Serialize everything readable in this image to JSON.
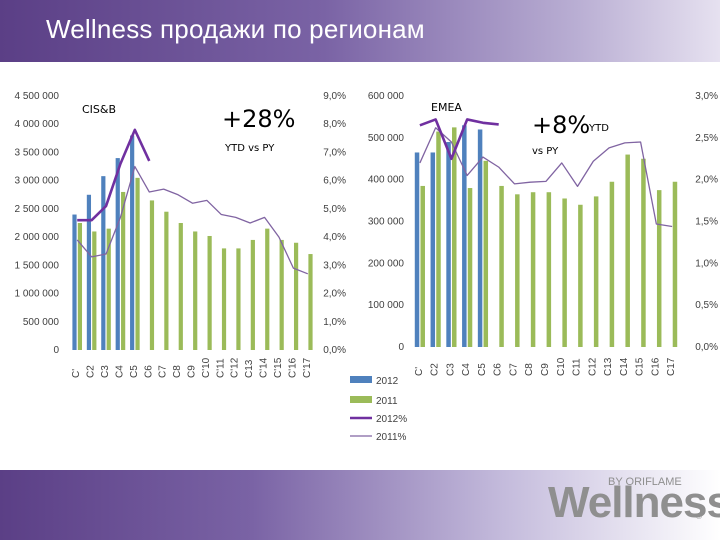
{
  "header": {
    "title": "Wellness продажи по регионам"
  },
  "logo": {
    "brand": "Wellness",
    "by": "BY ORIFLAME",
    "reg": "®"
  },
  "colors": {
    "bar2012": "#4f81bd",
    "bar2011": "#9bbb59",
    "line2012": "#7030a0",
    "line2011": "#8064a2"
  },
  "legend": [
    "2012",
    "2011",
    "2012%",
    "2011%"
  ],
  "chart_data": [
    {
      "type": "bar",
      "name_label": "CIS&B",
      "growth": "+28%",
      "growth_sub": "YTD vs PY",
      "categories": [
        "C1",
        "C2",
        "C3",
        "C4",
        "C5",
        "C6",
        "C7",
        "C8",
        "C9",
        "C10",
        "C11",
        "C12",
        "C13",
        "C14",
        "C15",
        "C16",
        "C17"
      ],
      "category_labels": [
        "C'",
        "C2",
        "C3",
        "C4",
        "C5",
        "C6",
        "C7",
        "C8",
        "C9",
        "C'10",
        "C'11",
        "C'12",
        "C13",
        "C'14",
        "C'15",
        "C'16",
        "C'17"
      ],
      "ylim": [
        0,
        4500000
      ],
      "y2lim": [
        0,
        9
      ],
      "y_ticks": [
        "0",
        "500 000",
        "1 000 000",
        "1 500 000",
        "2 000 000",
        "2 500 000",
        "3 000 000",
        "3 500 000",
        "4 000 000",
        "4 500 000"
      ],
      "y2_ticks": [
        "0,0%",
        "1,0%",
        "2,0%",
        "3,0%",
        "4,0%",
        "5,0%",
        "6,0%",
        "7,0%",
        "8,0%",
        "9,0%"
      ],
      "series": [
        {
          "name": "2012",
          "values": [
            2400000,
            2750000,
            3080000,
            3400000,
            3800000,
            null,
            null,
            null,
            null,
            null,
            null,
            null,
            null,
            null,
            null,
            null,
            null
          ]
        },
        {
          "name": "2011",
          "values": [
            2250000,
            2100000,
            2150000,
            2800000,
            3050000,
            2650000,
            2450000,
            2250000,
            2100000,
            2020000,
            1800000,
            1800000,
            1950000,
            2150000,
            1950000,
            1900000,
            1700000
          ]
        },
        {
          "name": "2012%",
          "values": [
            4.6,
            4.6,
            5.1,
            6.6,
            7.8,
            6.7,
            null,
            null,
            null,
            null,
            null,
            null,
            null,
            null,
            null,
            null,
            null
          ]
        },
        {
          "name": "2011%",
          "values": [
            3.9,
            3.3,
            3.4,
            4.7,
            6.5,
            5.6,
            5.7,
            5.5,
            5.2,
            5.3,
            4.8,
            4.7,
            4.5,
            4.7,
            4.0,
            2.9,
            2.7
          ]
        }
      ]
    },
    {
      "type": "bar",
      "name_label": "EMEA",
      "growth": "+8%",
      "growth_ytd": "YTD",
      "growth_sub": "vs PY",
      "categories": [
        "C1",
        "C2",
        "C3",
        "C4",
        "C5",
        "C6",
        "C7",
        "C8",
        "C9",
        "C10",
        "C11",
        "C12",
        "C13",
        "C14",
        "C15",
        "C16",
        "C17"
      ],
      "category_labels": [
        "C'",
        "C2",
        "C3",
        "C4",
        "C5",
        "C6",
        "C7",
        "C8",
        "C9",
        "C10",
        "C11",
        "C12",
        "C13",
        "C14",
        "C15",
        "C16",
        "C17"
      ],
      "ylim": [
        0,
        600000
      ],
      "y2lim": [
        0,
        3
      ],
      "y_ticks": [
        "0",
        "100 000",
        "200 000",
        "300 000",
        "400 000",
        "500 000",
        "600 000"
      ],
      "y2_ticks": [
        "0,0%",
        "0,5%",
        "1,0%",
        "1,5%",
        "2,0%",
        "2,5%",
        "3,0%"
      ],
      "series": [
        {
          "name": "2012",
          "values": [
            465000,
            465000,
            490000,
            530000,
            520000,
            null,
            null,
            null,
            null,
            null,
            null,
            null,
            null,
            null,
            null,
            null,
            null
          ]
        },
        {
          "name": "2011",
          "values": [
            385000,
            515000,
            525000,
            380000,
            445000,
            385000,
            365000,
            370000,
            370000,
            355000,
            340000,
            360000,
            395000,
            460000,
            450000,
            375000,
            395000
          ]
        },
        {
          "name": "2012%",
          "values": [
            2.65,
            2.72,
            2.25,
            2.72,
            2.68,
            2.66,
            null,
            null,
            null,
            null,
            null,
            null,
            null,
            null,
            null,
            null,
            null
          ]
        },
        {
          "name": "2011%",
          "values": [
            2.2,
            2.62,
            2.45,
            2.05,
            2.27,
            2.15,
            1.95,
            1.97,
            1.98,
            2.2,
            1.92,
            2.22,
            2.38,
            2.44,
            2.45,
            1.47,
            1.44
          ]
        }
      ]
    }
  ]
}
